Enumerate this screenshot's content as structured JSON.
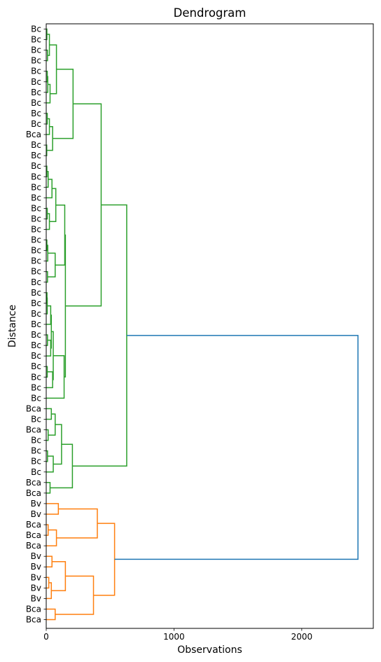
{
  "chart_data": {
    "type": "dendrogram",
    "orientation": "horizontal",
    "title": "Dendrogram",
    "xlabel": "Observations",
    "ylabel": "Distance",
    "xlim": [
      0,
      2560
    ],
    "xticks": [
      0,
      1000,
      2000
    ],
    "leaf_labels": [
      "Bc",
      "Bc",
      "Bc",
      "Bc",
      "Bc",
      "Bc",
      "Bc",
      "Bc",
      "Bc",
      "Bc",
      "Bca",
      "Bc",
      "Bc",
      "Bc",
      "Bc",
      "Bc",
      "Bc",
      "Bc",
      "Bc",
      "Bc",
      "Bc",
      "Bc",
      "Bc",
      "Bc",
      "Bc",
      "Bc",
      "Bc",
      "Bc",
      "Bc",
      "Bc",
      "Bc",
      "Bc",
      "Bc",
      "Bc",
      "Bc",
      "Bc",
      "Bca",
      "Bc",
      "Bca",
      "Bc",
      "Bc",
      "Bc",
      "Bc",
      "Bca",
      "Bca",
      "Bv",
      "Bv",
      "Bca",
      "Bca",
      "Bca",
      "Bv",
      "Bv",
      "Bv",
      "Bv",
      "Bv",
      "Bca",
      "Bca"
    ],
    "colors": {
      "green": "#2ca02c",
      "orange": "#ff7f0e",
      "blue": "#1f77b4"
    },
    "merges": [
      {
        "id": "A1",
        "l": "L0",
        "r": "L1",
        "d": 5,
        "c": "green"
      },
      {
        "id": "A2",
        "l": "L2",
        "r": "L3",
        "d": 10,
        "c": "green"
      },
      {
        "id": "A3",
        "l": "A1",
        "r": "A2",
        "d": 25,
        "c": "green"
      },
      {
        "id": "A4",
        "l": "L4",
        "r": "L5",
        "d": 8,
        "c": "green"
      },
      {
        "id": "A5",
        "l": "A4",
        "r": "L6",
        "d": 12,
        "c": "green"
      },
      {
        "id": "A6",
        "l": "A5",
        "r": "L7",
        "d": 30,
        "c": "green"
      },
      {
        "id": "A7",
        "l": "A3",
        "r": "A6",
        "d": 80,
        "c": "green"
      },
      {
        "id": "A8",
        "l": "L8",
        "r": "L9",
        "d": 8,
        "c": "green"
      },
      {
        "id": "A9",
        "l": "A8",
        "r": "L10",
        "d": 25,
        "c": "green"
      },
      {
        "id": "A10",
        "l": "L11",
        "r": "L12",
        "d": 4,
        "c": "green"
      },
      {
        "id": "A11",
        "l": "A9",
        "r": "A10",
        "d": 50,
        "c": "green"
      },
      {
        "id": "A12",
        "l": "A7",
        "r": "A11",
        "d": 210,
        "c": "green"
      },
      {
        "id": "B1",
        "l": "L13",
        "r": "L14",
        "d": 5,
        "c": "green"
      },
      {
        "id": "B2",
        "l": "B1",
        "r": "L15",
        "d": 15,
        "c": "green"
      },
      {
        "id": "B3",
        "l": "B2",
        "r": "L16",
        "d": 45,
        "c": "green"
      },
      {
        "id": "B4",
        "l": "L17",
        "r": "L18",
        "d": 8,
        "c": "green"
      },
      {
        "id": "B5",
        "l": "B4",
        "r": "L19",
        "d": 25,
        "c": "green"
      },
      {
        "id": "B6",
        "l": "B3",
        "r": "B5",
        "d": 75,
        "c": "green"
      },
      {
        "id": "B7",
        "l": "L20",
        "r": "L21",
        "d": 5,
        "c": "green"
      },
      {
        "id": "B8",
        "l": "B7",
        "r": "L22",
        "d": 12,
        "c": "green"
      },
      {
        "id": "B9",
        "l": "L23",
        "r": "L24",
        "d": 10,
        "c": "green"
      },
      {
        "id": "B10",
        "l": "B8",
        "r": "B9",
        "d": 70,
        "c": "green"
      },
      {
        "id": "B11",
        "l": "B6",
        "r": "B10",
        "d": 145,
        "c": "green"
      },
      {
        "id": "B12",
        "l": "L25",
        "r": "L26",
        "d": 6,
        "c": "green"
      },
      {
        "id": "B13",
        "l": "B12",
        "r": "L27",
        "d": 8,
        "c": "green"
      },
      {
        "id": "B14",
        "l": "B13",
        "r": "L28",
        "d": 35,
        "c": "green"
      },
      {
        "id": "B15",
        "l": "L29",
        "r": "L30",
        "d": 10,
        "c": "green"
      },
      {
        "id": "B16",
        "l": "B15",
        "r": "L31",
        "d": 35,
        "c": "green"
      },
      {
        "id": "B17",
        "l": "B14",
        "r": "B16",
        "d": 40,
        "c": "green"
      },
      {
        "id": "B18",
        "l": "L32",
        "r": "L33",
        "d": 8,
        "c": "green"
      },
      {
        "id": "B19",
        "l": "B18",
        "r": "L34",
        "d": 50,
        "c": "green"
      },
      {
        "id": "B20",
        "l": "B17",
        "r": "B19",
        "d": 55,
        "c": "green"
      },
      {
        "id": "B21",
        "l": "B20",
        "r": "L35",
        "d": 140,
        "c": "green"
      },
      {
        "id": "B22",
        "l": "B11",
        "r": "B21",
        "d": 150,
        "c": "green"
      },
      {
        "id": "B23",
        "l": "A12",
        "r": "B22",
        "d": 430,
        "c": "green"
      },
      {
        "id": "C1",
        "l": "L36",
        "r": "L37",
        "d": 40,
        "c": "green"
      },
      {
        "id": "C2",
        "l": "L38",
        "r": "L39",
        "d": 15,
        "c": "green"
      },
      {
        "id": "C3",
        "l": "C1",
        "r": "C2",
        "d": 70,
        "c": "green"
      },
      {
        "id": "C4",
        "l": "L40",
        "r": "L41",
        "d": 10,
        "c": "green"
      },
      {
        "id": "C5",
        "l": "C4",
        "r": "L42",
        "d": 55,
        "c": "green"
      },
      {
        "id": "C6",
        "l": "C3",
        "r": "C5",
        "d": 120,
        "c": "green"
      },
      {
        "id": "C7",
        "l": "L43",
        "r": "L44",
        "d": 30,
        "c": "green"
      },
      {
        "id": "C8",
        "l": "C6",
        "r": "C7",
        "d": 205,
        "c": "green"
      },
      {
        "id": "C9",
        "l": "B23",
        "r": "C8",
        "d": 630,
        "c": "green"
      },
      {
        "id": "D1",
        "l": "L45",
        "r": "L46",
        "d": 95,
        "c": "orange"
      },
      {
        "id": "D2",
        "l": "L47",
        "r": "L48",
        "d": 15,
        "c": "orange"
      },
      {
        "id": "D3",
        "l": "D2",
        "r": "L49",
        "d": 80,
        "c": "orange"
      },
      {
        "id": "D4",
        "l": "D1",
        "r": "D3",
        "d": 400,
        "c": "orange"
      },
      {
        "id": "D5",
        "l": "L50",
        "r": "L51",
        "d": 45,
        "c": "orange"
      },
      {
        "id": "D6",
        "l": "L52",
        "r": "L53",
        "d": 20,
        "c": "orange"
      },
      {
        "id": "D7",
        "l": "D6",
        "r": "L54",
        "d": 40,
        "c": "orange"
      },
      {
        "id": "D8",
        "l": "D5",
        "r": "D7",
        "d": 150,
        "c": "orange"
      },
      {
        "id": "D9",
        "l": "L55",
        "r": "L56",
        "d": 70,
        "c": "orange"
      },
      {
        "id": "D10",
        "l": "D8",
        "r": "D9",
        "d": 370,
        "c": "orange"
      },
      {
        "id": "D11",
        "l": "D4",
        "r": "D10",
        "d": 535,
        "c": "orange"
      },
      {
        "id": "ROOT",
        "l": "C9",
        "r": "D11",
        "d": 2440,
        "c": "blue"
      }
    ]
  }
}
